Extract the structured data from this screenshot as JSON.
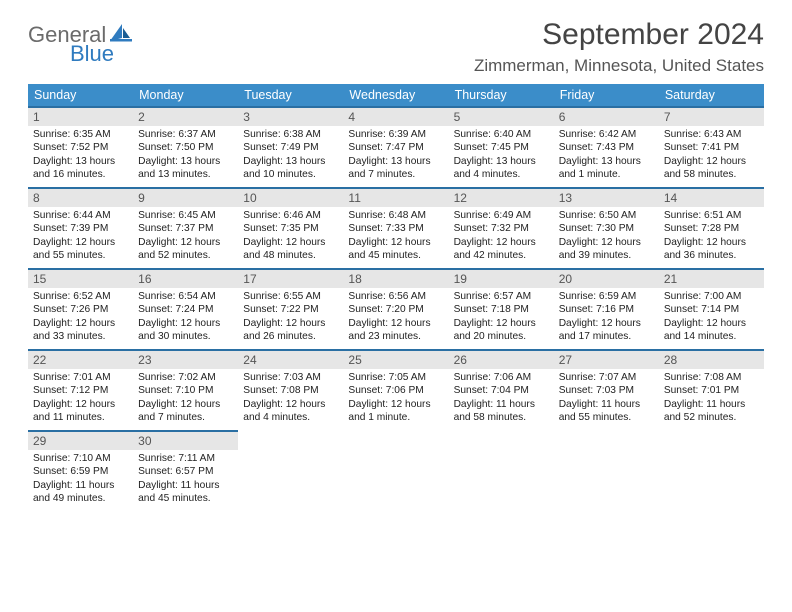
{
  "logo": {
    "word1": "General",
    "word2": "Blue",
    "brand_color": "#2f7bbf",
    "gray": "#6b6b6b"
  },
  "title": "September 2024",
  "location": "Zimmerman, Minnesota, United States",
  "header_bg": "#3b8dc9",
  "rule_color": "#2a6fa3",
  "daynum_bg": "#e6e6e6",
  "dow": [
    "Sunday",
    "Monday",
    "Tuesday",
    "Wednesday",
    "Thursday",
    "Friday",
    "Saturday"
  ],
  "weeks": [
    [
      {
        "n": "1",
        "sr": "6:35 AM",
        "ss": "7:52 PM",
        "dl": "13 hours and 16 minutes."
      },
      {
        "n": "2",
        "sr": "6:37 AM",
        "ss": "7:50 PM",
        "dl": "13 hours and 13 minutes."
      },
      {
        "n": "3",
        "sr": "6:38 AM",
        "ss": "7:49 PM",
        "dl": "13 hours and 10 minutes."
      },
      {
        "n": "4",
        "sr": "6:39 AM",
        "ss": "7:47 PM",
        "dl": "13 hours and 7 minutes."
      },
      {
        "n": "5",
        "sr": "6:40 AM",
        "ss": "7:45 PM",
        "dl": "13 hours and 4 minutes."
      },
      {
        "n": "6",
        "sr": "6:42 AM",
        "ss": "7:43 PM",
        "dl": "13 hours and 1 minute."
      },
      {
        "n": "7",
        "sr": "6:43 AM",
        "ss": "7:41 PM",
        "dl": "12 hours and 58 minutes."
      }
    ],
    [
      {
        "n": "8",
        "sr": "6:44 AM",
        "ss": "7:39 PM",
        "dl": "12 hours and 55 minutes."
      },
      {
        "n": "9",
        "sr": "6:45 AM",
        "ss": "7:37 PM",
        "dl": "12 hours and 52 minutes."
      },
      {
        "n": "10",
        "sr": "6:46 AM",
        "ss": "7:35 PM",
        "dl": "12 hours and 48 minutes."
      },
      {
        "n": "11",
        "sr": "6:48 AM",
        "ss": "7:33 PM",
        "dl": "12 hours and 45 minutes."
      },
      {
        "n": "12",
        "sr": "6:49 AM",
        "ss": "7:32 PM",
        "dl": "12 hours and 42 minutes."
      },
      {
        "n": "13",
        "sr": "6:50 AM",
        "ss": "7:30 PM",
        "dl": "12 hours and 39 minutes."
      },
      {
        "n": "14",
        "sr": "6:51 AM",
        "ss": "7:28 PM",
        "dl": "12 hours and 36 minutes."
      }
    ],
    [
      {
        "n": "15",
        "sr": "6:52 AM",
        "ss": "7:26 PM",
        "dl": "12 hours and 33 minutes."
      },
      {
        "n": "16",
        "sr": "6:54 AM",
        "ss": "7:24 PM",
        "dl": "12 hours and 30 minutes."
      },
      {
        "n": "17",
        "sr": "6:55 AM",
        "ss": "7:22 PM",
        "dl": "12 hours and 26 minutes."
      },
      {
        "n": "18",
        "sr": "6:56 AM",
        "ss": "7:20 PM",
        "dl": "12 hours and 23 minutes."
      },
      {
        "n": "19",
        "sr": "6:57 AM",
        "ss": "7:18 PM",
        "dl": "12 hours and 20 minutes."
      },
      {
        "n": "20",
        "sr": "6:59 AM",
        "ss": "7:16 PM",
        "dl": "12 hours and 17 minutes."
      },
      {
        "n": "21",
        "sr": "7:00 AM",
        "ss": "7:14 PM",
        "dl": "12 hours and 14 minutes."
      }
    ],
    [
      {
        "n": "22",
        "sr": "7:01 AM",
        "ss": "7:12 PM",
        "dl": "12 hours and 11 minutes."
      },
      {
        "n": "23",
        "sr": "7:02 AM",
        "ss": "7:10 PM",
        "dl": "12 hours and 7 minutes."
      },
      {
        "n": "24",
        "sr": "7:03 AM",
        "ss": "7:08 PM",
        "dl": "12 hours and 4 minutes."
      },
      {
        "n": "25",
        "sr": "7:05 AM",
        "ss": "7:06 PM",
        "dl": "12 hours and 1 minute."
      },
      {
        "n": "26",
        "sr": "7:06 AM",
        "ss": "7:04 PM",
        "dl": "11 hours and 58 minutes."
      },
      {
        "n": "27",
        "sr": "7:07 AM",
        "ss": "7:03 PM",
        "dl": "11 hours and 55 minutes."
      },
      {
        "n": "28",
        "sr": "7:08 AM",
        "ss": "7:01 PM",
        "dl": "11 hours and 52 minutes."
      }
    ],
    [
      {
        "n": "29",
        "sr": "7:10 AM",
        "ss": "6:59 PM",
        "dl": "11 hours and 49 minutes."
      },
      {
        "n": "30",
        "sr": "7:11 AM",
        "ss": "6:57 PM",
        "dl": "11 hours and 45 minutes."
      },
      null,
      null,
      null,
      null,
      null
    ]
  ]
}
